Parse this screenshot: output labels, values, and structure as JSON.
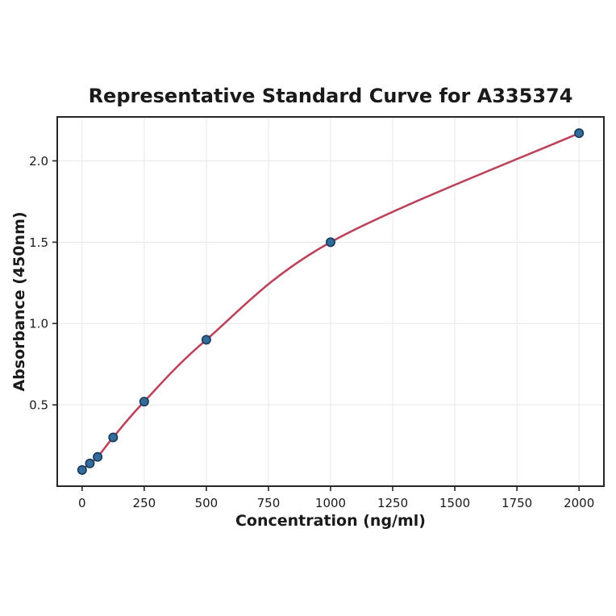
{
  "chart_data": {
    "type": "line",
    "title": "Representative Standard Curve for A335374",
    "xlabel": "Concentration (ng/ml)",
    "ylabel": "Absorbance (450nm)",
    "x": [
      0,
      31.25,
      62.5,
      125,
      250,
      500,
      1000,
      2000
    ],
    "y": [
      0.1,
      0.14,
      0.18,
      0.3,
      0.52,
      0.9,
      1.5,
      2.17
    ],
    "xticks": [
      0,
      250,
      500,
      750,
      1000,
      1250,
      1500,
      1750,
      2000
    ],
    "yticks": [
      0.5,
      1.0,
      1.5,
      2.0
    ],
    "xlim": [
      -100,
      2100
    ],
    "ylim": [
      0,
      2.27
    ],
    "grid": true,
    "legend": "none",
    "colors": {
      "curve": "#bb445c",
      "marker_fill": "#336b9b",
      "marker_edge": "#173a5a",
      "grid": "#ebebeb",
      "axis": "#262626",
      "text": "#1a1a1a",
      "background": "#ffffff"
    }
  }
}
